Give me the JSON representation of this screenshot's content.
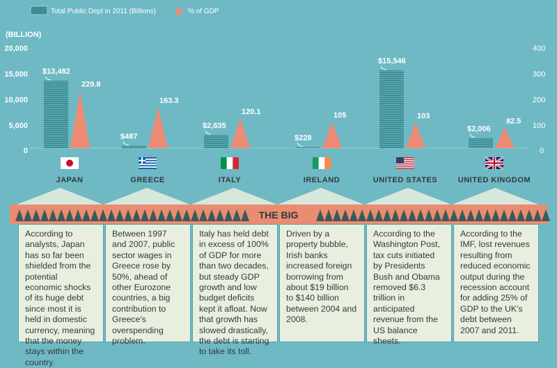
{
  "legend": {
    "debt_label": "Total Public Dept in 2011 (Billions)",
    "gdp_label": "% of GDP"
  },
  "left_axis": {
    "unit_label": "(BILLION)",
    "ticks": [
      "20,000",
      "15,000",
      "10,000",
      "5,000",
      "0"
    ]
  },
  "right_axis": {
    "ticks": [
      "400",
      "300",
      "200",
      "100",
      "0"
    ]
  },
  "band_title": "THE BIG",
  "colors": {
    "background": "#6fb9c4",
    "debt_bar": "#3a8f97",
    "gdp_triangle": "#ee8b74",
    "panel": "#e9efdf",
    "band": "#e98c72",
    "zigzag": "#3c5a5c",
    "text_dark": "#2f3a3c"
  },
  "countries": [
    {
      "name": "JAPAN",
      "flag": "japan",
      "debt_label": "$13,482",
      "gdp_label": "229.8",
      "description": "According to analysts,  Japan has so far been shielded from the potential economic shocks of its huge debt since most it is held in domestic currency, meaning that the money stays within the country."
    },
    {
      "name": "GREECE",
      "flag": "greece",
      "debt_label": "$487",
      "gdp_label": "163.3",
      "description": "Between 1997 and 2007, public sector wages in Greece rose by 50%, ahead of other Eurozone countries, a big contribution to Greece's overspending problem."
    },
    {
      "name": "ITALY",
      "flag": "italy",
      "debt_label": "$2,635",
      "gdp_label": "120.1",
      "description": "Italy has held debt in excess of 100% of GDP for more than two decades, but steady GDP growth and low budget deficits kept it afloat. Now that growth has slowed drastically, the debt is starting to take its toll."
    },
    {
      "name": "IRELAND",
      "flag": "ireland",
      "debt_label": "$228",
      "gdp_label": "105",
      "description": "Driven by a property bubble, Irish banks increased foreign borrowing from about $19 billion to $140 billion between 2004 and 2008."
    },
    {
      "name": "UNITED STATES",
      "flag": "usa",
      "debt_label": "$15,546",
      "gdp_label": "103",
      "description": "According to the Washington Post, tax cuts initiated by Presidents Bush and Obama removed $6.3 trillion in anticipated revenue from the US balance sheets."
    },
    {
      "name": "UNITED KINGDOM",
      "flag": "uk",
      "debt_label": "$2,006",
      "gdp_label": "82.5",
      "description": "According to the IMF, lost revenues resulting from reduced economic output during the recession account for adding 25% of GDP to the UK's debt between 2007 and 2011."
    }
  ],
  "chart_data": {
    "type": "bar",
    "categories": [
      "JAPAN",
      "GREECE",
      "ITALY",
      "IRELAND",
      "UNITED STATES",
      "UNITED KINGDOM"
    ],
    "series": [
      {
        "name": "Total Public Dept in 2011 (Billions)",
        "values": [
          13482,
          487,
          2635,
          228,
          15546,
          2006
        ],
        "axis": "left",
        "mark": "bar"
      },
      {
        "name": "% of GDP",
        "values": [
          229.8,
          163.3,
          120.1,
          105,
          103,
          82.5
        ],
        "axis": "right",
        "mark": "triangle"
      }
    ],
    "ylabel": "(BILLION)",
    "ylim": [
      0,
      20000
    ],
    "y2lim": [
      0,
      400
    ],
    "grid": false,
    "legend": "top-left"
  }
}
